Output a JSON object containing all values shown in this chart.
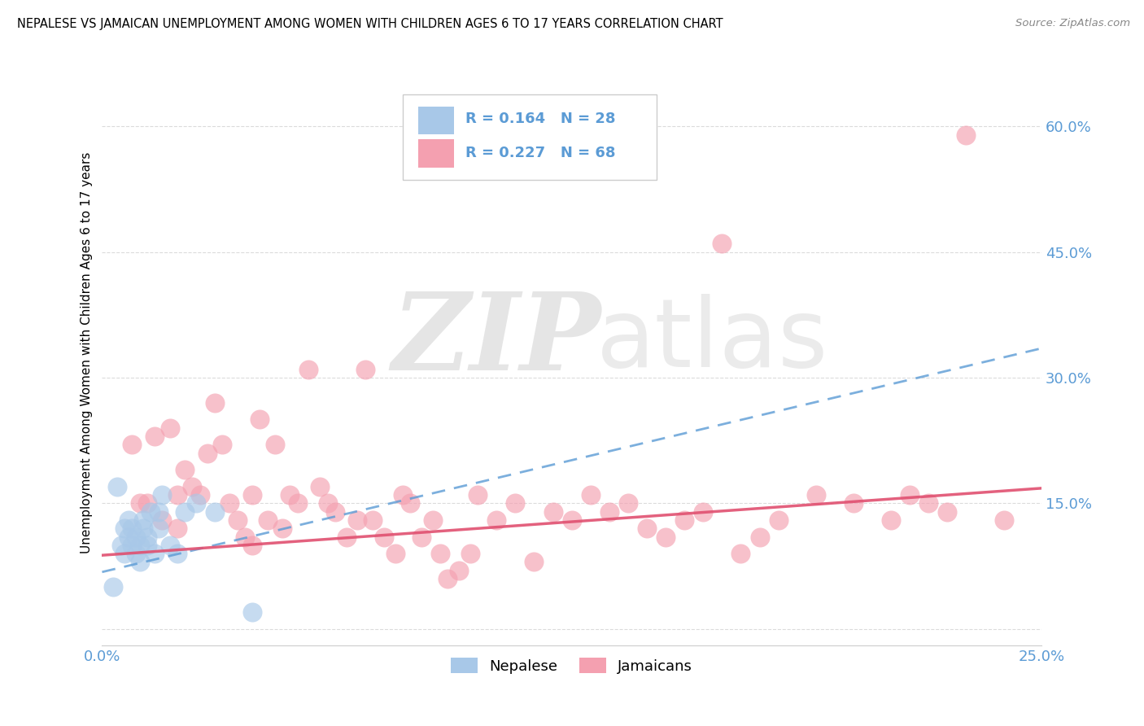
{
  "title": "NEPALESE VS JAMAICAN UNEMPLOYMENT AMONG WOMEN WITH CHILDREN AGES 6 TO 17 YEARS CORRELATION CHART",
  "source": "Source: ZipAtlas.com",
  "ylabel": "Unemployment Among Women with Children Ages 6 to 17 years",
  "xlim": [
    0.0,
    0.25
  ],
  "ylim": [
    -0.02,
    0.68
  ],
  "yticks": [
    0.0,
    0.15,
    0.3,
    0.45,
    0.6
  ],
  "ytick_labels": [
    "",
    "15.0%",
    "30.0%",
    "45.0%",
    "60.0%"
  ],
  "xticks": [
    0.0,
    0.05,
    0.1,
    0.15,
    0.2,
    0.25
  ],
  "xtick_labels": [
    "0.0%",
    "",
    "",
    "",
    "",
    "25.0%"
  ],
  "nepalese_R": 0.164,
  "nepalese_N": 28,
  "jamaican_R": 0.227,
  "jamaican_N": 68,
  "nepalese_color": "#a8c8e8",
  "jamaican_color": "#f4a0b0",
  "nepalese_trend_color": "#5b9bd5",
  "jamaican_trend_color": "#e05070",
  "tick_color": "#5b9bd5",
  "background_color": "#ffffff",
  "grid_color": "#cccccc",
  "nepalese_trend_x": [
    0.0,
    0.25
  ],
  "nepalese_trend_y": [
    0.068,
    0.335
  ],
  "jamaican_trend_x": [
    0.0,
    0.25
  ],
  "jamaican_trend_y": [
    0.088,
    0.168
  ],
  "nepalese_x": [
    0.003,
    0.004,
    0.005,
    0.006,
    0.006,
    0.007,
    0.007,
    0.008,
    0.008,
    0.009,
    0.009,
    0.01,
    0.01,
    0.011,
    0.011,
    0.012,
    0.012,
    0.013,
    0.014,
    0.015,
    0.015,
    0.016,
    0.018,
    0.02,
    0.022,
    0.025,
    0.03,
    0.04
  ],
  "nepalese_y": [
    0.05,
    0.17,
    0.1,
    0.12,
    0.09,
    0.11,
    0.13,
    0.1,
    0.12,
    0.09,
    0.11,
    0.1,
    0.08,
    0.13,
    0.12,
    0.11,
    0.1,
    0.14,
    0.09,
    0.14,
    0.12,
    0.16,
    0.1,
    0.09,
    0.14,
    0.15,
    0.14,
    0.02
  ],
  "jamaican_x": [
    0.008,
    0.01,
    0.012,
    0.014,
    0.016,
    0.018,
    0.02,
    0.02,
    0.022,
    0.024,
    0.026,
    0.028,
    0.03,
    0.032,
    0.034,
    0.036,
    0.038,
    0.04,
    0.04,
    0.042,
    0.044,
    0.046,
    0.048,
    0.05,
    0.052,
    0.055,
    0.058,
    0.06,
    0.062,
    0.065,
    0.068,
    0.07,
    0.072,
    0.075,
    0.078,
    0.08,
    0.082,
    0.085,
    0.088,
    0.09,
    0.092,
    0.095,
    0.098,
    0.1,
    0.105,
    0.11,
    0.115,
    0.12,
    0.125,
    0.13,
    0.135,
    0.14,
    0.145,
    0.15,
    0.155,
    0.16,
    0.165,
    0.17,
    0.175,
    0.18,
    0.19,
    0.2,
    0.21,
    0.215,
    0.22,
    0.225,
    0.23,
    0.24
  ],
  "jamaican_y": [
    0.22,
    0.15,
    0.15,
    0.23,
    0.13,
    0.24,
    0.16,
    0.12,
    0.19,
    0.17,
    0.16,
    0.21,
    0.27,
    0.22,
    0.15,
    0.13,
    0.11,
    0.1,
    0.16,
    0.25,
    0.13,
    0.22,
    0.12,
    0.16,
    0.15,
    0.31,
    0.17,
    0.15,
    0.14,
    0.11,
    0.13,
    0.31,
    0.13,
    0.11,
    0.09,
    0.16,
    0.15,
    0.11,
    0.13,
    0.09,
    0.06,
    0.07,
    0.09,
    0.16,
    0.13,
    0.15,
    0.08,
    0.14,
    0.13,
    0.16,
    0.14,
    0.15,
    0.12,
    0.11,
    0.13,
    0.14,
    0.46,
    0.09,
    0.11,
    0.13,
    0.16,
    0.15,
    0.13,
    0.16,
    0.15,
    0.14,
    0.59,
    0.13
  ]
}
